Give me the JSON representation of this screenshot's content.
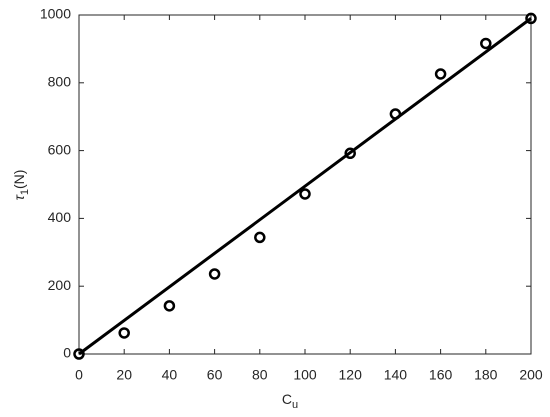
{
  "chart_data": {
    "type": "scatter",
    "x_label": {
      "text": "C",
      "subscript": "u"
    },
    "y_label": {
      "text": "τ",
      "subscript": "1",
      "suffix": "(N)"
    },
    "series": [
      {
        "mode": "markers",
        "color": "#000000",
        "x": [
          0,
          20,
          40,
          60,
          80,
          100,
          120,
          140,
          160,
          180,
          200
        ],
        "values": [
          0,
          62,
          142,
          236,
          344,
          472,
          592,
          708,
          826,
          916,
          990
        ]
      },
      {
        "mode": "line",
        "color": "#000000",
        "x": [
          0,
          200
        ],
        "values": [
          0,
          990
        ]
      }
    ],
    "xlim": [
      0,
      200
    ],
    "xticks": [
      0,
      20,
      40,
      60,
      80,
      100,
      120,
      140,
      160,
      180,
      200
    ],
    "ylim": [
      0,
      1000
    ],
    "yticks": [
      0,
      200,
      400,
      600,
      800,
      1000
    ],
    "grid": false
  }
}
